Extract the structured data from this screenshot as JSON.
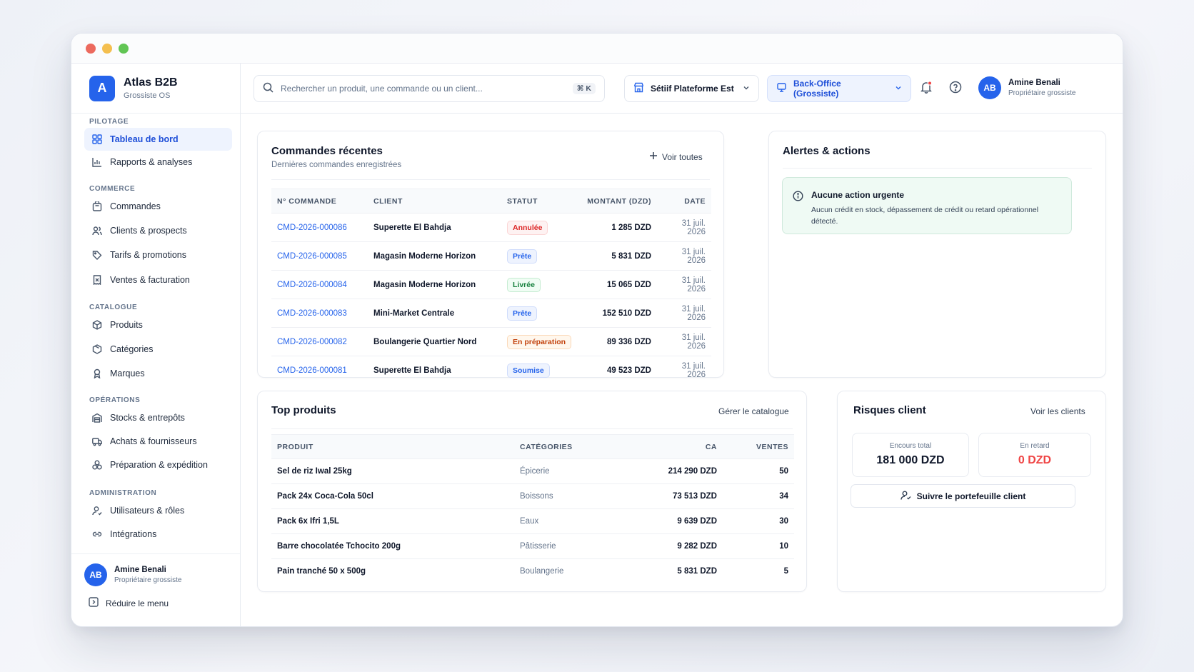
{
  "brand": {
    "initial": "A",
    "name": "Atlas B2B",
    "sub": "Grossiste OS"
  },
  "sidebar": {
    "sections": [
      "Pilotage",
      "Commerce",
      "Catalogue",
      "Opérations",
      "Administration"
    ],
    "items": [
      {
        "label": "Tableau de bord",
        "icon": "grid-icon"
      },
      {
        "label": "Rapports & analyses",
        "icon": "bar-chart-icon"
      },
      {
        "label": "Commandes",
        "icon": "bag-icon"
      },
      {
        "label": "Clients & prospects",
        "icon": "users-icon"
      },
      {
        "label": "Tarifs & promotions",
        "icon": "tag-icon"
      },
      {
        "label": "Ventes & facturation",
        "icon": "receipt-icon"
      },
      {
        "label": "Produits",
        "icon": "box-icon"
      },
      {
        "label": "Catégories",
        "icon": "cube-icon"
      },
      {
        "label": "Marques",
        "icon": "ribbon-icon"
      },
      {
        "label": "Stocks & entrepôts",
        "icon": "warehouse-icon"
      },
      {
        "label": "Achats & fournisseurs",
        "icon": "truck-icon"
      },
      {
        "label": "Préparation & expédition",
        "icon": "boxes-icon"
      },
      {
        "label": "Utilisateurs & rôles",
        "icon": "user-cog-icon"
      },
      {
        "label": "Intégrations",
        "icon": "link-icon"
      }
    ],
    "user": {
      "initials": "AB",
      "name": "Amine Benali",
      "role": "Propriétaire grossiste"
    },
    "collapse_label": "Réduire le menu"
  },
  "topbar": {
    "search_placeholder": "Rechercher un produit, une commande ou un client...",
    "shortcut": "⌘ K",
    "site": "Sétiif Plateforme Est",
    "mode": "Back-Office (Grossiste)",
    "user": {
      "initials": "AB",
      "name": "Amine Benali",
      "role": "Propriétaire grossiste"
    }
  },
  "orders": {
    "title": "Commandes récentes",
    "subtitle": "Dernières commandes enregistrées",
    "link": "Voir toutes",
    "columns": [
      "N° Commande",
      "Client",
      "Statut",
      "Montant (DZD)",
      "Date"
    ],
    "rows": [
      {
        "id": "CMD-2026-000086",
        "client": "Superette El Bahdja",
        "status": "Annulée",
        "tone": "b-red",
        "amount": "1 285 DZD",
        "date": "31 juil. 2026"
      },
      {
        "id": "CMD-2026-000085",
        "client": "Magasin Moderne Horizon",
        "status": "Prête",
        "tone": "b-blue",
        "amount": "5 831 DZD",
        "date": "31 juil. 2026"
      },
      {
        "id": "CMD-2026-000084",
        "client": "Magasin Moderne Horizon",
        "status": "Livrée",
        "tone": "b-green",
        "amount": "15 065 DZD",
        "date": "31 juil. 2026"
      },
      {
        "id": "CMD-2026-000083",
        "client": "Mini-Market Centrale",
        "status": "Prête",
        "tone": "b-blue",
        "amount": "152 510 DZD",
        "date": "31 juil. 2026"
      },
      {
        "id": "CMD-2026-000082",
        "client": "Boulangerie Quartier Nord",
        "status": "En préparation",
        "tone": "b-orange",
        "amount": "89 336 DZD",
        "date": "31 juil. 2026"
      },
      {
        "id": "CMD-2026-000081",
        "client": "Superette El Bahdja",
        "status": "Soumise",
        "tone": "b-blue",
        "amount": "49 523 DZD",
        "date": "31 juil. 2026"
      }
    ]
  },
  "alerts": {
    "title": "Alertes & actions",
    "heading": "Aucune action urgente",
    "message": "Aucun crédit en stock, dépassement de crédit ou retard opérationnel détecté."
  },
  "products": {
    "title": "Top produits",
    "link": "Gérer le catalogue",
    "columns": [
      "Produit",
      "Catégories",
      "CA",
      "Ventes"
    ],
    "rows": [
      {
        "name": "Sel de riz Iwal 25kg",
        "category": "Épicerie",
        "ca": "214 290 DZD",
        "sales": "50"
      },
      {
        "name": "Pack 24x Coca-Cola 50cl",
        "category": "Boissons",
        "ca": "73 513 DZD",
        "sales": "34"
      },
      {
        "name": "Pack 6x Ifri 1,5L",
        "category": "Eaux",
        "ca": "9 639 DZD",
        "sales": "30"
      },
      {
        "name": "Barre chocolatée Tchocito 200g",
        "category": "Pâtisserie",
        "ca": "9 282 DZD",
        "sales": "10"
      },
      {
        "name": "Pain tranché 50 x 500g",
        "category": "Boulangerie",
        "ca": "5 831 DZD",
        "sales": "5"
      }
    ]
  },
  "risks": {
    "title": "Risques client",
    "link": "Voir les clients",
    "total_label": "Encours total",
    "total_value": "181 000 DZD",
    "late_label": "En retard",
    "late_value": "0 DZD",
    "button": "Suivre le portefeuille client"
  }
}
